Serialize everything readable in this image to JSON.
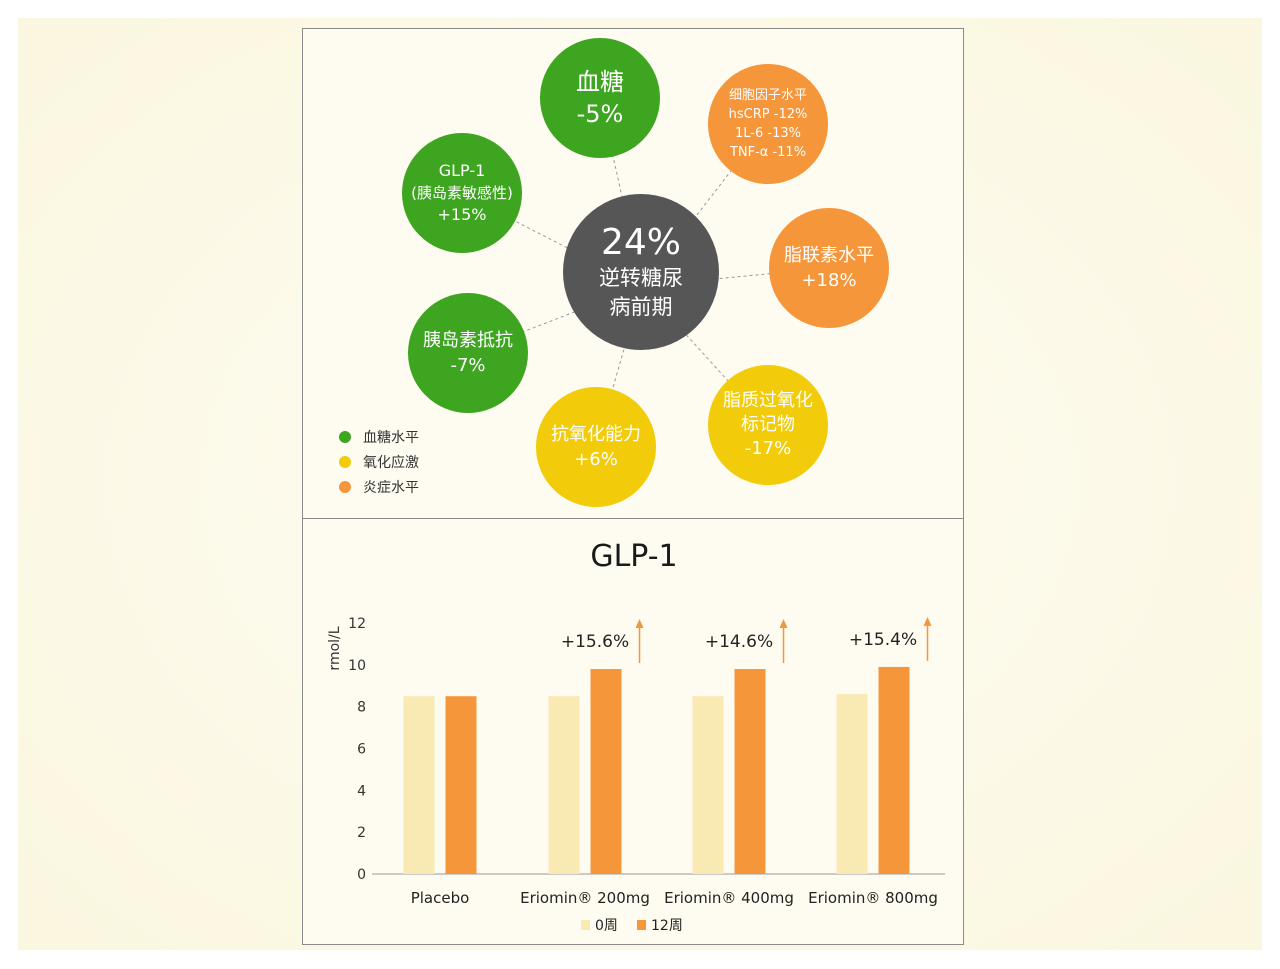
{
  "center": {
    "value": "24%",
    "line1": "逆转糖尿",
    "line2": "病前期"
  },
  "bubbles": [
    {
      "lines": [
        "血糖",
        "-5%"
      ],
      "category": "green"
    },
    {
      "lines": [
        "细胞因子水平",
        "hsCRP -12%",
        "1L-6 -13%",
        "TNF-α -11%"
      ],
      "category": "orange"
    },
    {
      "lines": [
        "GLP-1",
        "(胰岛素敏感性)",
        "+15%"
      ],
      "category": "green"
    },
    {
      "lines": [
        "脂联素水平",
        "+18%"
      ],
      "category": "orange"
    },
    {
      "lines": [
        "胰岛素抵抗",
        "-7%"
      ],
      "category": "green"
    },
    {
      "lines": [
        "脂质过氧化",
        "标记物",
        "-17%"
      ],
      "category": "yellow"
    },
    {
      "lines": [
        "抗氧化能力",
        "+6%"
      ],
      "category": "yellow"
    }
  ],
  "legend": [
    {
      "label": "血糖水平",
      "color": "#3da51f"
    },
    {
      "label": "氧化应激",
      "color": "#f2cb0a"
    },
    {
      "label": "炎症水平",
      "color": "#f6963a"
    }
  ],
  "chart_data": {
    "type": "bar",
    "title": "GLP-1",
    "ylabel": "rmol/L",
    "ylim": [
      0,
      12
    ],
    "yticks": [
      "0",
      "2",
      "4",
      "6",
      "8",
      "10",
      "12"
    ],
    "categories": [
      "Placebo",
      "Eriomin® 200mg",
      "Eriomin® 400mg",
      "Eriomin® 800mg"
    ],
    "series": [
      {
        "name": "0周",
        "color": "#f9e9b3",
        "values": [
          8.5,
          8.5,
          8.5,
          8.6
        ]
      },
      {
        "name": "12周",
        "color": "#f6963a",
        "values": [
          8.5,
          9.8,
          9.8,
          9.9
        ]
      }
    ],
    "annotations": [
      "",
      "+15.6%",
      "+14.6%",
      "+15.4%"
    ],
    "legend_position": "bottom",
    "grid": false
  }
}
